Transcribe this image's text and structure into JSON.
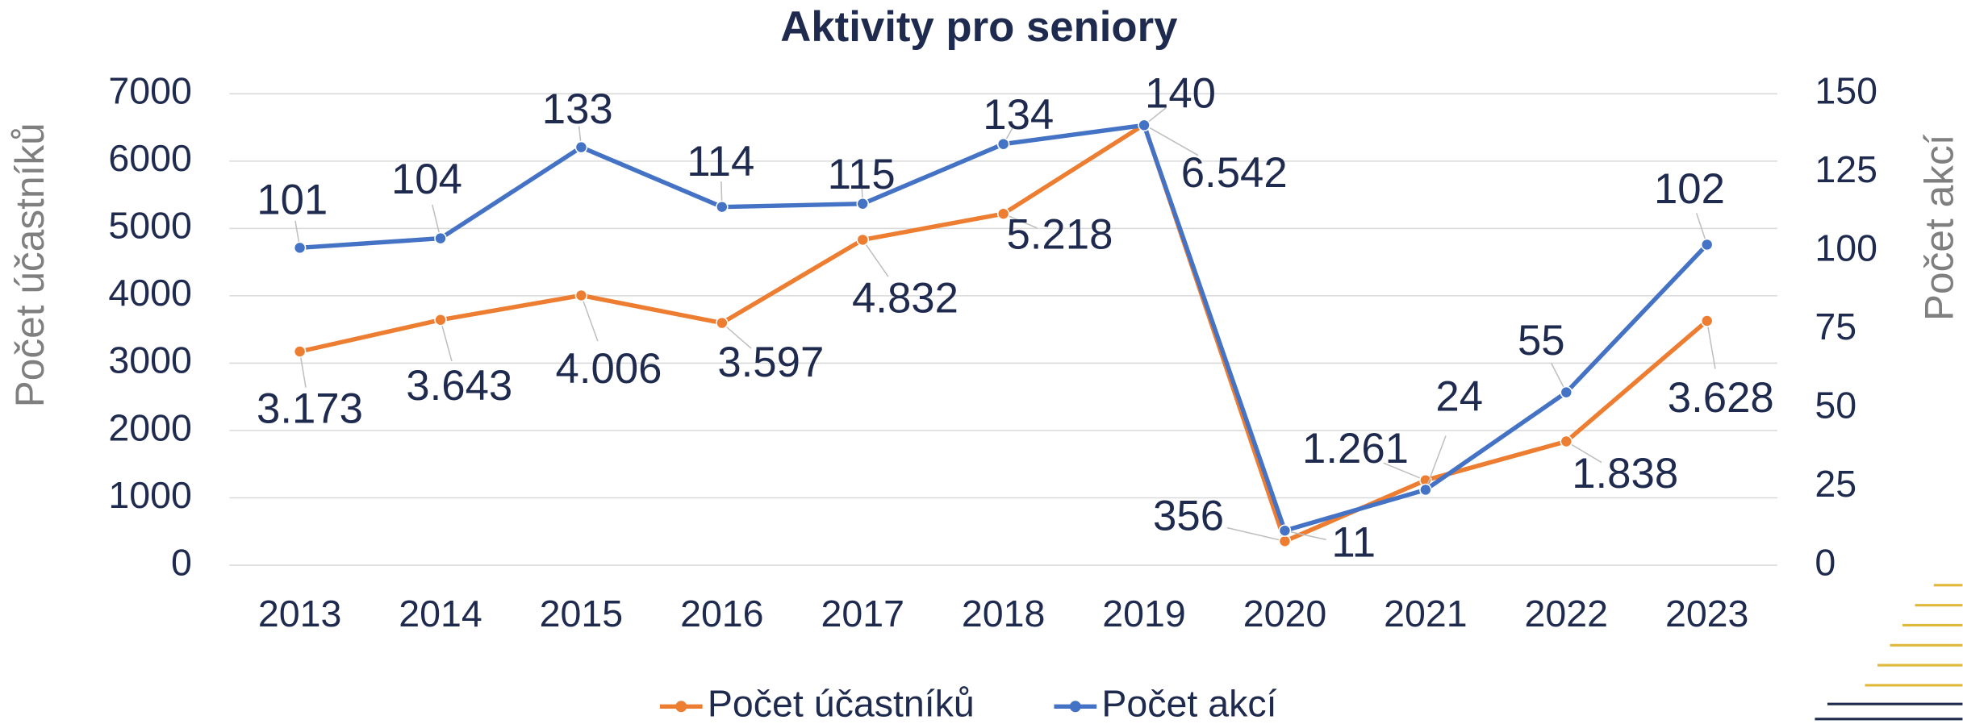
{
  "chart_data": {
    "type": "line",
    "title": "Aktivity pro seniory",
    "y_label": "Počet účastníků",
    "y2_label": "Počet akcí",
    "categories": [
      "2013",
      "2014",
      "2015",
      "2016",
      "2017",
      "2018",
      "2019",
      "2020",
      "2021",
      "2022",
      "2023"
    ],
    "series": [
      {
        "name": "Počet účastníků",
        "color": "#ed7d31",
        "values": [
          3173,
          3643,
          4006,
          3597,
          4832,
          5218,
          6542,
          356,
          1261,
          1838,
          3628
        ],
        "value_labels": [
          "3.173",
          "3.643",
          "4.006",
          "3.597",
          "4.832",
          "5.218",
          "6.542",
          "356",
          "1.261",
          "1.838",
          "3.628"
        ]
      },
      {
        "name": "Počet akcí",
        "color": "#4472c4",
        "axis": "y2",
        "values": [
          101,
          104,
          133,
          114,
          115,
          134,
          140,
          11,
          24,
          55,
          102
        ]
      }
    ],
    "ylim": [
      0,
      7000
    ],
    "yticks": [
      0,
      1000,
      2000,
      3000,
      4000,
      5000,
      6000,
      7000
    ],
    "y2lim": [
      0,
      150
    ],
    "y2ticks": [
      0,
      25,
      50,
      75,
      100,
      125,
      150
    ],
    "grid": true,
    "legend": "bottom"
  }
}
